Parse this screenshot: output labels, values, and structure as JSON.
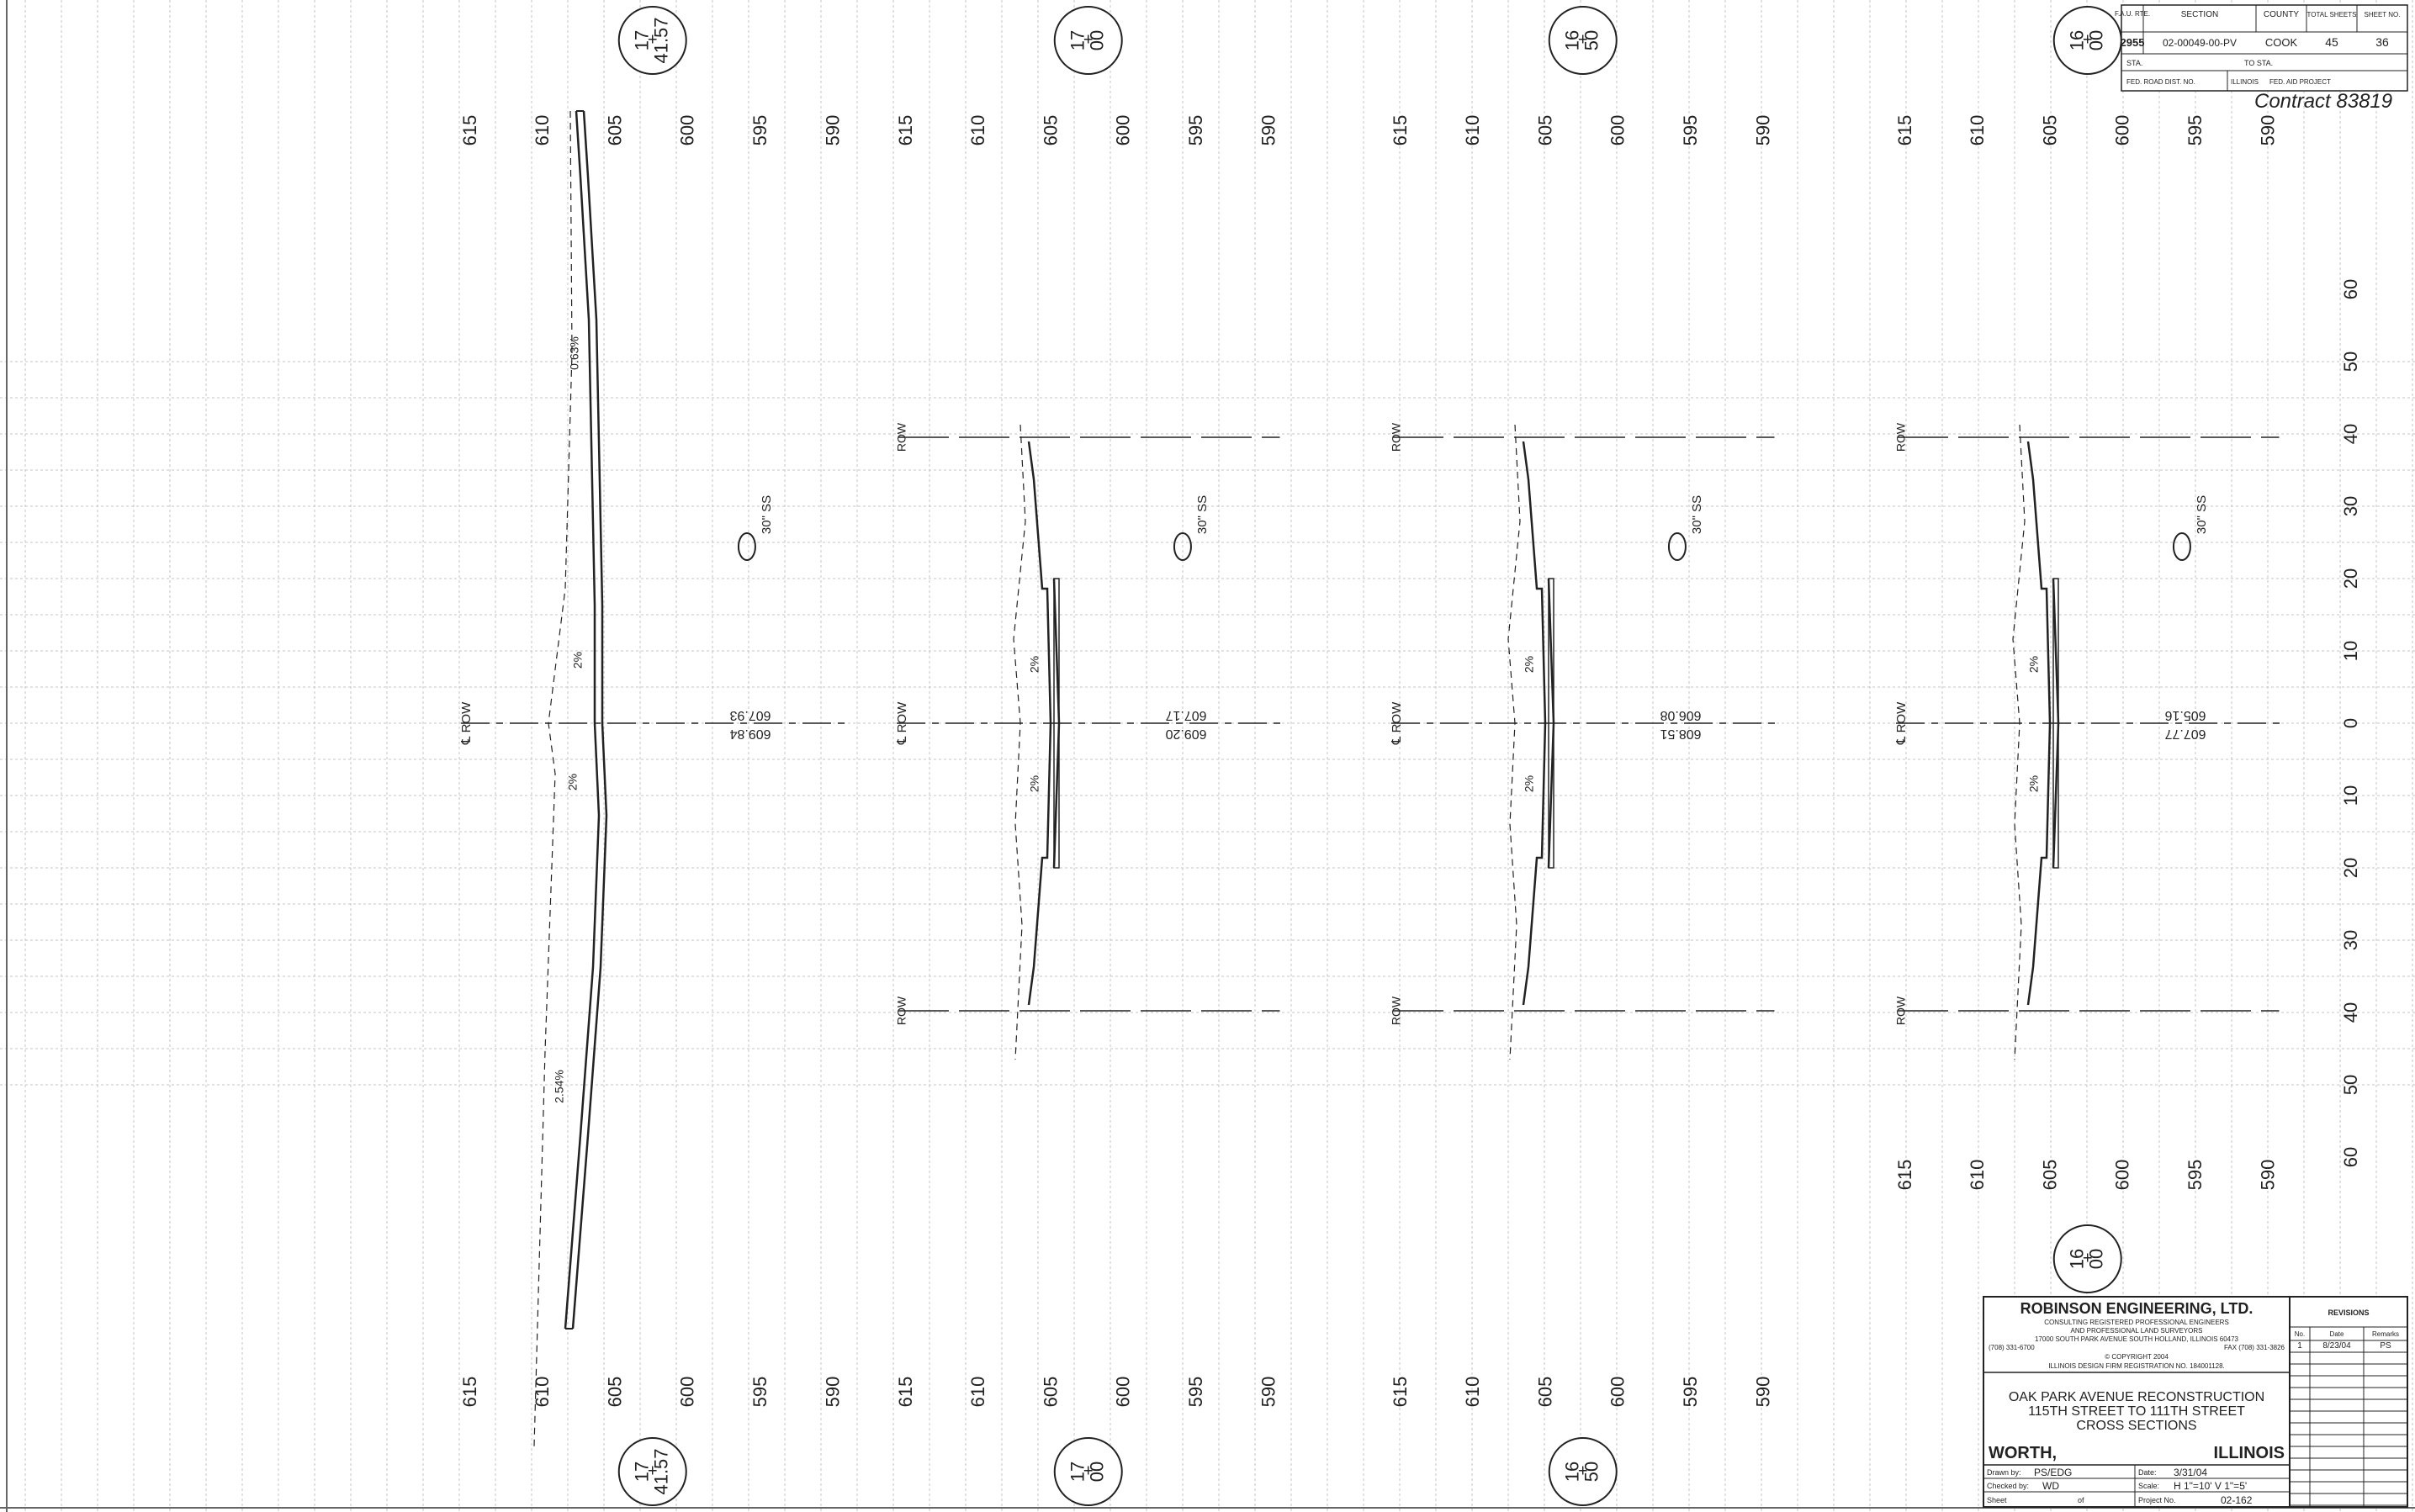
{
  "title_block_top": {
    "headers": [
      "F.A.U. RTE.",
      "SECTION",
      "COUNTY",
      "TOTAL SHEETS",
      "SHEET NO."
    ],
    "values": [
      "2955",
      "02-00049-00-PV",
      "COOK",
      "45",
      "36"
    ],
    "sta_label": "STA.",
    "to_sta_label": "TO STA.",
    "fed_road_label": "FED. ROAD DIST. NO.",
    "state": "ILLINOIS",
    "fed_aid_label": "FED. AID PROJECT",
    "handwritten_note": "Contract 83819"
  },
  "elevation_ticks": [
    "615",
    "610",
    "605",
    "600",
    "595",
    "590"
  ],
  "offset_ticks": [
    "60",
    "50",
    "40",
    "30",
    "20",
    "10",
    "0",
    "10",
    "20",
    "30",
    "40",
    "50",
    "60"
  ],
  "labels": {
    "row": "ROW",
    "cl_row": "℄ ROW",
    "sewer": "30\" SS",
    "slope_2": "2%",
    "slope_a": "0.63%",
    "slope_b": "2.54%"
  },
  "sections": [
    {
      "station": "17+41.57",
      "sta_top": "17",
      "sta_bot": "41.57",
      "elev_proposed": "607.93",
      "elev_existing": "609.84"
    },
    {
      "station": "17+00",
      "sta_top": "17",
      "sta_bot": "00",
      "elev_proposed": "607.17",
      "elev_existing": "609.20"
    },
    {
      "station": "16+50",
      "sta_top": "16",
      "sta_bot": "50",
      "elev_proposed": "606.08",
      "elev_existing": "608.51"
    },
    {
      "station": "16+00",
      "sta_top": "16",
      "sta_bot": "00",
      "elev_proposed": "605.16",
      "elev_existing": "607.77"
    }
  ],
  "firm": {
    "name": "ROBINSON ENGINEERING, LTD.",
    "line1": "CONSULTING REGISTERED PROFESSIONAL ENGINEERS",
    "line2": "AND PROFESSIONAL LAND SURVEYORS",
    "line3": "17000 SOUTH PARK AVENUE   SOUTH HOLLAND, ILLINOIS 60473",
    "phone": "(708) 331-6700",
    "fax": "FAX (708) 331-3826",
    "copyright": "© COPYRIGHT 2004",
    "registration": "ILLINOIS DESIGN FIRM REGISTRATION NO. 184001128."
  },
  "project": {
    "title": "OAK PARK AVENUE RECONSTRUCTION",
    "limits": "115TH STREET TO 111TH STREET",
    "subtitle": "CROSS SECTIONS",
    "city": "WORTH,",
    "state": "ILLINOIS"
  },
  "signoff": {
    "drawn_label": "Drawn by:",
    "drawn": "PS/EDG",
    "date_label": "Date:",
    "date": "3/31/04",
    "checked_label": "Checked by:",
    "checked": "WD",
    "scale_label": "Scale:",
    "scale": "H 1\"=10' V 1\"=5'",
    "sheet_label": "Sheet",
    "of_label": "of",
    "project_no_label": "Project No.",
    "project_no": "02-162"
  },
  "revisions": {
    "title": "REVISIONS",
    "headers": [
      "No.",
      "Date",
      "Remarks"
    ],
    "rows": [
      [
        "1",
        "8/23/04",
        "PS"
      ]
    ]
  }
}
